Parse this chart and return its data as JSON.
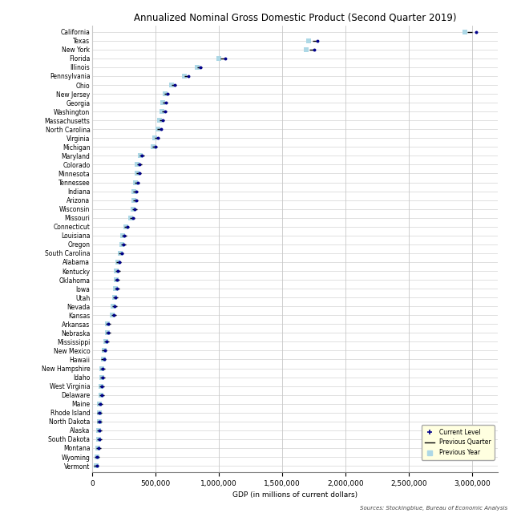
{
  "title": "Annualized Nominal Gross Domestic Product (Second Quarter 2019)",
  "xlabel": "GDP (in millions of current dollars)",
  "source": "Sources: Stockingblue, Bureau of Economic Analysis",
  "states": [
    "California",
    "Texas",
    "New York",
    "Florida",
    "Illinois",
    "Pennsylvania",
    "Ohio",
    "New Jersey",
    "Georgia",
    "Washington",
    "Massachusetts",
    "North Carolina",
    "Virginia",
    "Michigan",
    "Maryland",
    "Colorado",
    "Minnesota",
    "Tennessee",
    "Indiana",
    "Arizona",
    "Wisconsin",
    "Missouri",
    "Connecticut",
    "Louisiana",
    "Oregon",
    "South Carolina",
    "Alabama",
    "Kentucky",
    "Oklahoma",
    "Iowa",
    "Utah",
    "Nevada",
    "Kansas",
    "Arkansas",
    "Nebraska",
    "Mississippi",
    "New Mexico",
    "Hawaii",
    "New Hampshire",
    "Idaho",
    "West Virginia",
    "Delaware",
    "Maine",
    "Rhode Island",
    "North Dakota",
    "Alaska",
    "South Dakota",
    "Montana",
    "Wyoming",
    "Vermont"
  ],
  "current": [
    3031000,
    1779000,
    1750000,
    1050000,
    856000,
    758000,
    652000,
    596000,
    584000,
    576000,
    554000,
    540000,
    516000,
    500000,
    393000,
    374000,
    370000,
    359000,
    348000,
    345000,
    336000,
    320000,
    277000,
    252000,
    247000,
    232000,
    212000,
    202000,
    198000,
    196000,
    185000,
    177000,
    169000,
    127000,
    127000,
    115000,
    97000,
    91000,
    82000,
    79000,
    76000,
    73000,
    61000,
    58000,
    57000,
    55000,
    54000,
    50000,
    38000,
    34000
  ],
  "prev_quarter": [
    2980000,
    1760000,
    1730000,
    1030000,
    845000,
    748000,
    645000,
    590000,
    575000,
    567000,
    547000,
    533000,
    510000,
    494000,
    388000,
    369000,
    365000,
    354000,
    343000,
    340000,
    332000,
    316000,
    274000,
    249000,
    243000,
    228000,
    209000,
    199000,
    195000,
    193000,
    182000,
    174000,
    167000,
    125000,
    125000,
    114000,
    96000,
    90000,
    81000,
    78000,
    75000,
    72000,
    60000,
    57000,
    56000,
    54000,
    53000,
    49000,
    37000,
    33000
  ],
  "prev_year": [
    2940000,
    1710000,
    1690000,
    1000000,
    825000,
    728000,
    628000,
    572000,
    556000,
    549000,
    530000,
    515000,
    494000,
    478000,
    376000,
    355000,
    352000,
    341000,
    330000,
    326000,
    319000,
    305000,
    266000,
    240000,
    233000,
    218000,
    200000,
    191000,
    186000,
    184000,
    174000,
    164000,
    159000,
    119000,
    119000,
    109000,
    91000,
    85000,
    77000,
    73000,
    71000,
    68000,
    57000,
    54000,
    53000,
    51000,
    50000,
    46000,
    35000,
    31000
  ],
  "color_current": "#00008B",
  "color_prev_quarter": "#000000",
  "color_prev_year": "#ADD8E6",
  "bg_color": "#ffffff",
  "grid_color": "#c8c8c8",
  "title_fontsize": 8.5,
  "label_fontsize": 5.5,
  "tick_fontsize": 6.5
}
